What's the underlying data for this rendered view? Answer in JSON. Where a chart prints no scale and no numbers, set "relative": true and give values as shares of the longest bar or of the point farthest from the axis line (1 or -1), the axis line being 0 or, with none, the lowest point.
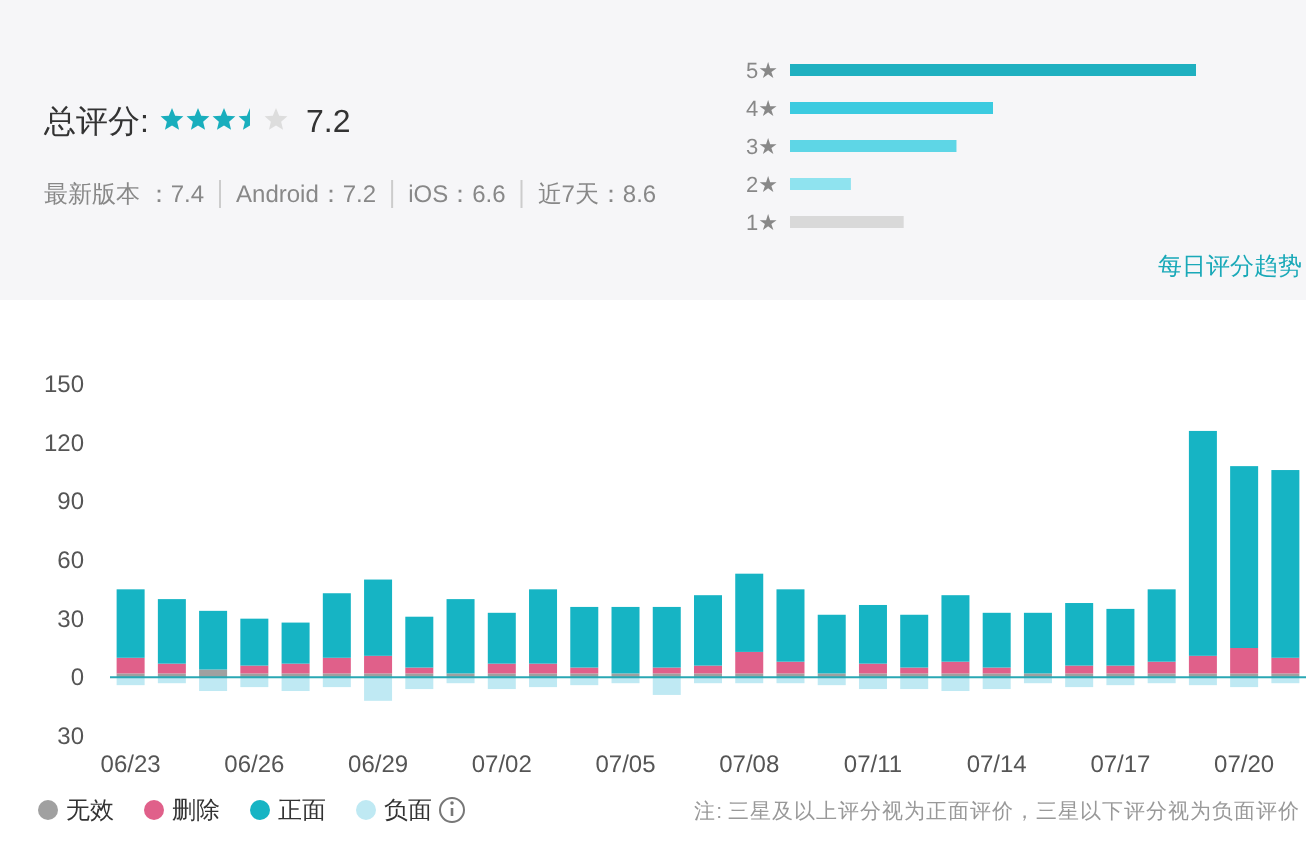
{
  "chart_data": [
    {
      "type": "other",
      "title": "总评分:",
      "annotations": [
        "7.2",
        "最新版本 ：7.4",
        "Android：7.2",
        "iOS：6.6",
        "近7天：8.6"
      ]
    },
    {
      "type": "bar",
      "orientation": "horizontal",
      "relative": true,
      "categories": [
        "5★",
        "4★",
        "3★",
        "2★",
        "1★"
      ],
      "values": [
        1,
        0.5,
        0.41,
        0.15,
        0.28
      ],
      "colors": [
        "#1fb0c0",
        "#3ccbe0",
        "#5ed6e6",
        "#8fe3ef",
        "#d9d9d9"
      ],
      "annotations": [
        "每日评分趋势"
      ]
    },
    {
      "type": "bar",
      "stacked": true,
      "categories": [
        "06/23",
        null,
        null,
        "06/26",
        null,
        null,
        "06/29",
        null,
        null,
        "07/02",
        null,
        null,
        "07/05",
        null,
        null,
        "07/08",
        null,
        null,
        "07/11",
        null,
        null,
        "07/14",
        null,
        null,
        "07/17",
        null,
        null,
        "07/20",
        null
      ],
      "series": [
        {
          "name": "无效",
          "color": "#a0a0a0",
          "values": [
            2,
            2,
            4,
            2,
            2,
            2,
            2,
            2,
            2,
            2,
            2,
            2,
            2,
            2,
            2,
            2,
            2,
            2,
            2,
            2,
            2,
            2,
            2,
            2,
            2,
            2,
            2,
            2,
            2
          ]
        },
        {
          "name": "删除",
          "color": "#e0608a",
          "values": [
            8,
            5,
            0,
            4,
            5,
            8,
            9,
            3,
            0,
            5,
            5,
            3,
            0,
            3,
            4,
            11,
            6,
            0,
            5,
            3,
            6,
            3,
            0,
            4,
            4,
            6,
            9,
            13,
            8
          ]
        },
        {
          "name": "正面",
          "color": "#16b4c4",
          "values": [
            35,
            33,
            30,
            24,
            21,
            33,
            39,
            26,
            38,
            26,
            38,
            31,
            34,
            31,
            36,
            40,
            37,
            30,
            30,
            27,
            34,
            28,
            31,
            32,
            29,
            37,
            115,
            93,
            96
          ]
        },
        {
          "name": "负面",
          "color": "#bfe9f3",
          "values": [
            -4,
            -3,
            -7,
            -5,
            -7,
            -5,
            -12,
            -6,
            -3,
            -6,
            -5,
            -4,
            -3,
            -9,
            -3,
            -3,
            -3,
            -4,
            -6,
            -6,
            -7,
            -6,
            -3,
            -5,
            -4,
            -3,
            -4,
            -5,
            -3
          ]
        }
      ],
      "ylim": [
        -30,
        150
      ],
      "ref_lines": [
        {
          "axis": "y",
          "value": 0,
          "color": "#2aa8b4"
        }
      ],
      "yticks": [
        {
          "value": -30,
          "label": "30"
        },
        0,
        30,
        60,
        90,
        120,
        150
      ],
      "grid": false,
      "legend": "bottom left",
      "annotations": [
        "注: 三星及以上评分视为正面评价，三星以下评分视为负面评价"
      ]
    }
  ]
}
